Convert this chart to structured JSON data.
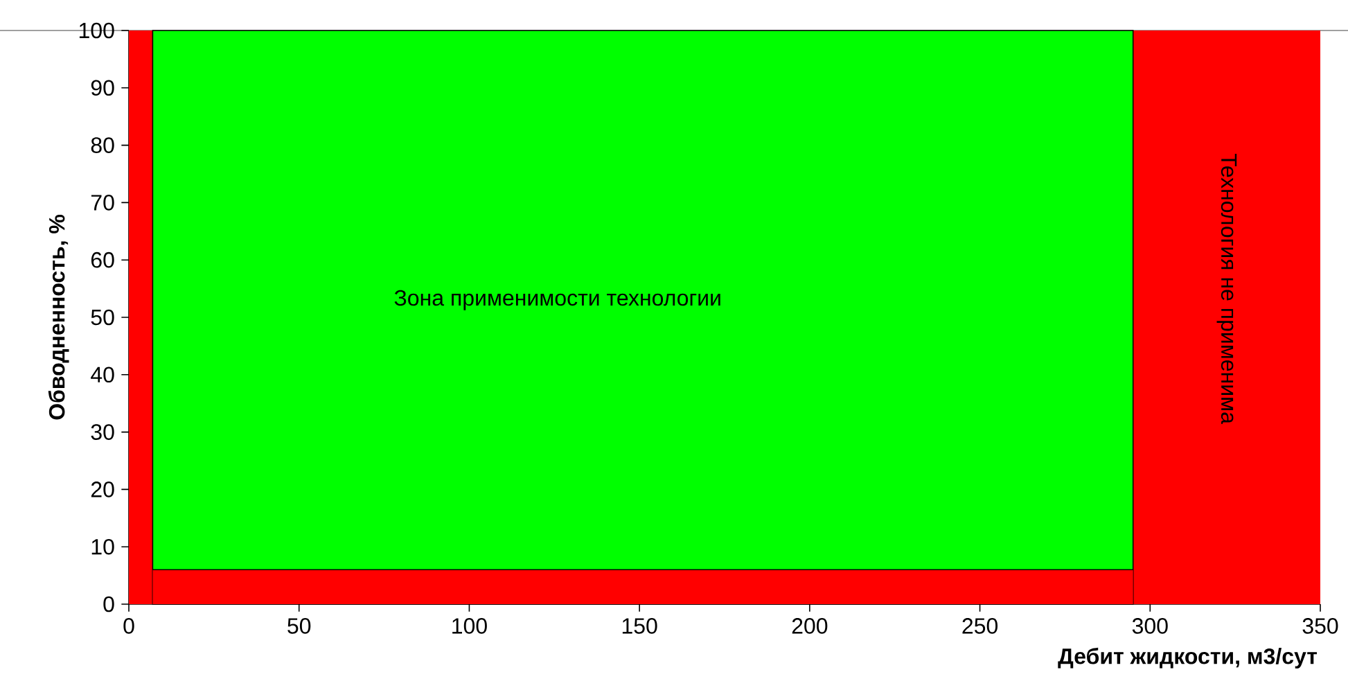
{
  "chart_data": {
    "type": "area",
    "xlabel": "Дебит жидкости, м3/сут",
    "ylabel": "Обводненность, %",
    "xlim": [
      0,
      350
    ],
    "ylim": [
      0,
      100
    ],
    "xticks": [
      0,
      50,
      100,
      150,
      200,
      250,
      300,
      350
    ],
    "yticks": [
      0,
      10,
      20,
      30,
      40,
      50,
      60,
      70,
      80,
      90,
      100
    ],
    "grid": false,
    "series": [
      {
        "color": "#ff0000",
        "x": [
          0,
          350
        ],
        "values": [
          100,
          100
        ]
      },
      {
        "color": "#00ff00",
        "x": [
          7,
          295
        ],
        "values": [
          100,
          100
        ]
      },
      {
        "color": "#ff0000",
        "x": [
          7,
          295
        ],
        "values": [
          6,
          6
        ]
      }
    ],
    "annotations": [
      "Зона применимости технологии",
      "Технология не применима"
    ]
  }
}
